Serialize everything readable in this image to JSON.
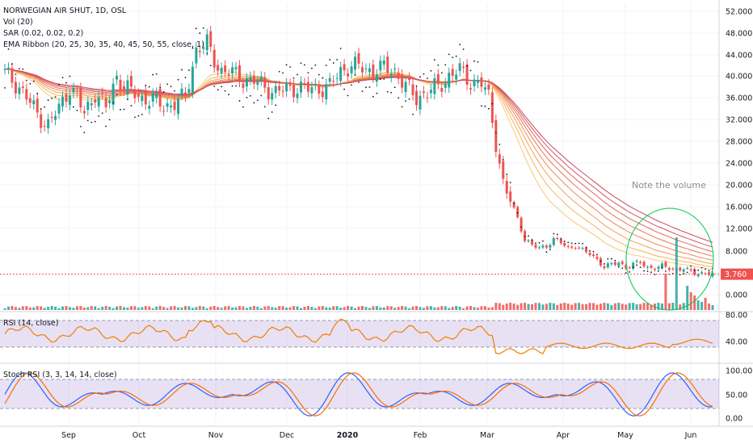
{
  "chart_data": {
    "type": "candlestick",
    "title": "NORWEGIAN AIR SHUT, 1D, OSL",
    "legend": {
      "volume": "Vol (20)",
      "sar": "SAR (0.02, 0.02, 0.2)",
      "ema_ribbon": "EMA Ribbon (20, 25, 30, 35, 40, 45, 50, 55, close, 1)",
      "rsi": "RSI (14, close)",
      "stoch_rsi": "Stoch RSI (3, 3, 14, 14, close)"
    },
    "annotation": "Note the volume",
    "last_price_label": "3.760",
    "last_price": 3.76,
    "x_labels": [
      "Sep",
      "Oct",
      "Nov",
      "Dec",
      "2020",
      "Feb",
      "Mar",
      "Apr",
      "May",
      "Jun"
    ],
    "price_ticks": [
      "52.000",
      "48.000",
      "44.000",
      "40.000",
      "36.000",
      "32.000",
      "28.000",
      "24.000",
      "20.000",
      "16.000",
      "12.000",
      "8.000",
      "0.000"
    ],
    "rsi_ticks": [
      "80.00",
      "40.00"
    ],
    "stoch_ticks": [
      "100.00",
      "50.00",
      "0.00"
    ],
    "colors": {
      "up": "#26a69a",
      "down": "#ef5350",
      "sar": "#131722",
      "ema_ribbon": [
        "#f7c873",
        "#f5b35a",
        "#f29e54",
        "#ee8a55",
        "#e87656",
        "#df6459",
        "#d4545d",
        "#c84a62"
      ],
      "rsi_line": "#f57c00",
      "rsi_band": "#7e57c2",
      "stoch_k": "#2962ff",
      "stoch_d": "#ff6d00",
      "last_price": "#ef5350",
      "annotation_circle": "#00c853",
      "annotation_text": "#8e8e8e"
    },
    "price_segments": [
      [
        0,
        40.5
      ],
      [
        4,
        38
      ],
      [
        9,
        33
      ],
      [
        12,
        31
      ],
      [
        15,
        34
      ],
      [
        18,
        38
      ],
      [
        20,
        36
      ],
      [
        22,
        33
      ],
      [
        25,
        37
      ],
      [
        28,
        34
      ],
      [
        31,
        40
      ],
      [
        33,
        38
      ],
      [
        35,
        37
      ],
      [
        38,
        36
      ],
      [
        41,
        35.5
      ],
      [
        44,
        34.5
      ],
      [
        47,
        35
      ],
      [
        50,
        36
      ],
      [
        53,
        45
      ],
      [
        56,
        46
      ],
      [
        58,
        43
      ],
      [
        60,
        41
      ],
      [
        63,
        40.5
      ],
      [
        66,
        39.5
      ],
      [
        69,
        39
      ],
      [
        72,
        38
      ],
      [
        75,
        37
      ],
      [
        78,
        37.5
      ],
      [
        81,
        38
      ],
      [
        84,
        37.5
      ],
      [
        87,
        37.8
      ],
      [
        90,
        38
      ],
      [
        93,
        41
      ],
      [
        96,
        42
      ],
      [
        99,
        41.5
      ],
      [
        102,
        41
      ],
      [
        105,
        41.5
      ],
      [
        108,
        41
      ],
      [
        111,
        38
      ],
      [
        114,
        36
      ],
      [
        117,
        37
      ],
      [
        120,
        38
      ],
      [
        123,
        40
      ],
      [
        126,
        41
      ],
      [
        129,
        39
      ],
      [
        132,
        38.5
      ],
      [
        134,
        36
      ],
      [
        136,
        28
      ],
      [
        138,
        20
      ],
      [
        140,
        17
      ],
      [
        142,
        14
      ],
      [
        144,
        10
      ],
      [
        146,
        9
      ],
      [
        148,
        8.5
      ],
      [
        150,
        9
      ],
      [
        152,
        10
      ],
      [
        154,
        9.5
      ],
      [
        156,
        8.5
      ],
      [
        158,
        9
      ],
      [
        160,
        8
      ],
      [
        162,
        7.5
      ],
      [
        164,
        6.5
      ],
      [
        166,
        5
      ],
      [
        168,
        5.5
      ],
      [
        170,
        6
      ],
      [
        172,
        5
      ],
      [
        174,
        5.5
      ],
      [
        176,
        6
      ],
      [
        178,
        5
      ],
      [
        180,
        4.8
      ],
      [
        182,
        5.2
      ],
      [
        184,
        5
      ],
      [
        186,
        4.5
      ],
      [
        188,
        4.7
      ],
      [
        190,
        4.2
      ],
      [
        192,
        4
      ],
      [
        194,
        3.8
      ],
      [
        196,
        3.76
      ]
    ],
    "volume_spikes": [
      [
        183,
        45
      ],
      [
        186,
        90
      ],
      [
        189,
        30
      ],
      [
        190,
        22
      ],
      [
        191,
        18
      ],
      [
        192,
        12
      ],
      [
        193,
        10
      ],
      [
        194,
        15
      ],
      [
        195,
        8
      ],
      [
        196,
        6
      ]
    ],
    "price_axis": {
      "max": 52,
      "unit_step": 4,
      "note": "logarithmic-like, compressed below 16"
    },
    "rsi_range": [
      0,
      100
    ],
    "stoch_range": [
      0,
      100
    ]
  }
}
